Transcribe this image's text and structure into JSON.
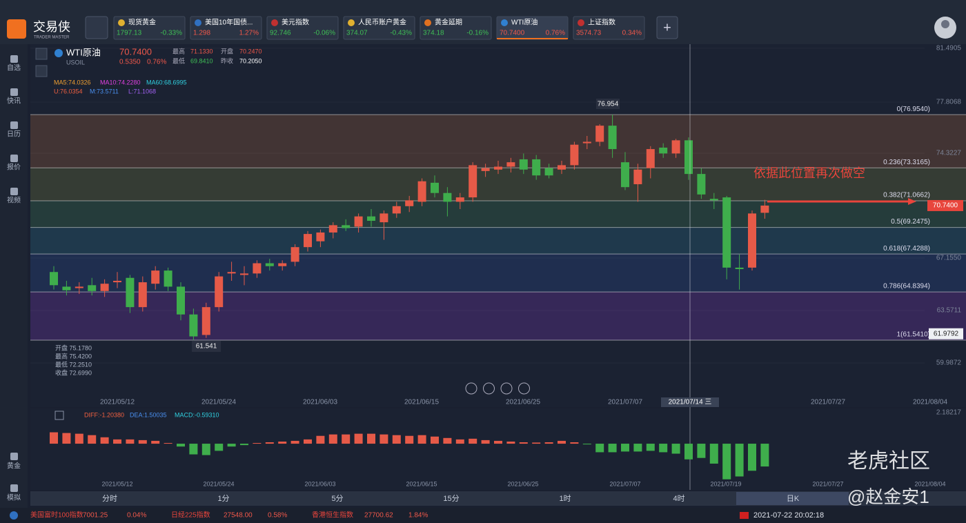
{
  "app": {
    "logo": "交易侠",
    "logo_sub": "TRADER MASTER"
  },
  "tabs": [
    {
      "name": "现货黄金",
      "price": "1797.13",
      "change": "-0.33%"
    },
    {
      "name": "美国10年国债...",
      "price": "1.298",
      "change": "1.27%"
    },
    {
      "name": "美元指数",
      "price": "92.746",
      "change": "-0.06%"
    },
    {
      "name": "人民币账户黄金",
      "price": "374.07",
      "change": "-0.43%"
    },
    {
      "name": "黄金延期",
      "price": "374.18",
      "change": "-0.16%"
    },
    {
      "name": "WTI原油",
      "price": "70.7400",
      "change": "0.76%"
    },
    {
      "name": "上证指数",
      "price": "3574.73",
      "change": "0.34%"
    }
  ],
  "selected_tab": 5,
  "sidebar": [
    "自选",
    "快讯",
    "日历",
    "报价",
    "视频"
  ],
  "sidebar_bottom": [
    "黄金",
    "模拟"
  ],
  "quote": {
    "name": "WTI原油",
    "code": "USOIL",
    "price": "70.7400",
    "change": "0.5350",
    "change_pct": "0.76%",
    "high_label": "最高",
    "high": "71.1330",
    "open_label": "开盘",
    "open": "70.2470",
    "low_label": "最低",
    "low": "69.8410",
    "prev_label": "昨收",
    "prev": "70.2050"
  },
  "indicators": [
    {
      "text": "MA5:74.0326",
      "color": "#f0a030"
    },
    {
      "text": "MA10:74.2280",
      "color": "#e040e0"
    },
    {
      "text": "MA60:68.6995",
      "color": "#30d0e0"
    },
    {
      "text": "U:76.0354",
      "color": "#f06040"
    },
    {
      "text": "M:73.5711",
      "color": "#4a90f0"
    },
    {
      "text": "L:71.1068",
      "color": "#a060f0"
    }
  ],
  "hover": [
    "开盘 75.1780",
    "最高 75.4200",
    "最低 72.2510",
    "收盘 72.6990"
  ],
  "chart": {
    "type": "candlestick",
    "ylim": [
      56.97,
      81.77
    ],
    "yticks": [
      81.4905,
      77.8068,
      74.3227,
      {
        "value": 67.155,
        "label": "67.1550"
      },
      63.5711,
      59.9872
    ],
    "up_color": "#e65a48",
    "down_color": "#3fae4c",
    "candles": [
      [
        66.2,
        66.6,
        65.0,
        65.3
      ],
      [
        65.2,
        65.6,
        64.6,
        64.95
      ],
      [
        65.1,
        65.5,
        64.7,
        65.2
      ],
      [
        65.3,
        65.8,
        64.6,
        64.9
      ],
      [
        64.9,
        65.7,
        64.5,
        65.4
      ],
      [
        65.5,
        66.2,
        65.1,
        65.6
      ],
      [
        65.8,
        66.0,
        63.4,
        63.8
      ],
      [
        63.8,
        65.9,
        63.5,
        65.5
      ],
      [
        65.4,
        66.6,
        65.0,
        66.3
      ],
      [
        66.3,
        66.5,
        64.9,
        65.2
      ],
      [
        65.2,
        65.5,
        62.9,
        63.3
      ],
      [
        63.3,
        63.7,
        61.541,
        61.8
      ],
      [
        61.9,
        64.1,
        61.7,
        63.8
      ],
      [
        63.8,
        66.2,
        63.5,
        65.9
      ],
      [
        66.1,
        66.9,
        65.6,
        66.2
      ],
      [
        66.0,
        66.6,
        65.3,
        66.1
      ],
      [
        66.1,
        67.0,
        65.8,
        66.8
      ],
      [
        66.8,
        67.1,
        66.3,
        66.6
      ],
      [
        66.6,
        67.0,
        66.3,
        66.8
      ],
      [
        66.9,
        68.1,
        66.6,
        67.9
      ],
      [
        67.9,
        69.0,
        67.6,
        68.8
      ],
      [
        68.3,
        69.1,
        67.9,
        68.9
      ],
      [
        68.9,
        69.6,
        68.5,
        69.4
      ],
      [
        69.4,
        69.8,
        69.0,
        69.2
      ],
      [
        69.3,
        70.2,
        68.9,
        70.0
      ],
      [
        70.0,
        70.5,
        69.3,
        69.7
      ],
      [
        69.6,
        70.4,
        68.4,
        70.2
      ],
      [
        70.2,
        71.0,
        69.9,
        70.7
      ],
      [
        70.7,
        71.4,
        70.3,
        71.1
      ],
      [
        71.0,
        72.6,
        70.7,
        72.4
      ],
      [
        72.3,
        72.8,
        71.3,
        71.6
      ],
      [
        71.6,
        72.0,
        70.0,
        71.0
      ],
      [
        71.0,
        71.6,
        70.5,
        71.3
      ],
      [
        71.3,
        73.7,
        71.0,
        73.5
      ],
      [
        73.1,
        73.6,
        72.7,
        73.3
      ],
      [
        73.2,
        73.8,
        72.9,
        73.4
      ],
      [
        73.4,
        74.0,
        73.0,
        73.7
      ],
      [
        73.9,
        74.3,
        72.9,
        73.2
      ],
      [
        73.9,
        74.2,
        72.5,
        72.8
      ],
      [
        73.3,
        73.6,
        72.6,
        72.8
      ],
      [
        73.2,
        73.8,
        72.9,
        73.5
      ],
      [
        73.5,
        75.1,
        73.2,
        74.9
      ],
      [
        75.0,
        75.5,
        74.6,
        75.1
      ],
      [
        75.1,
        76.3,
        74.8,
        76.2
      ],
      [
        76.2,
        76.954,
        74.0,
        74.6
      ],
      [
        73.7,
        74.4,
        71.8,
        72.0
      ],
      [
        72.2,
        73.6,
        71.0,
        73.2
      ],
      [
        73.3,
        74.8,
        72.6,
        74.6
      ],
      [
        74.7,
        75.0,
        74.0,
        74.3
      ],
      [
        74.3,
        75.3,
        74.0,
        75.2
      ],
      [
        75.2,
        75.4,
        72.5,
        72.9
      ],
      [
        72.9,
        73.3,
        71.2,
        71.5
      ],
      [
        71.2,
        71.6,
        70.5,
        71.1
      ],
      [
        71.3,
        71.4,
        65.7,
        66.5
      ],
      [
        66.5,
        67.4,
        65.0,
        66.4
      ],
      [
        66.5,
        70.4,
        66.3,
        70.2
      ],
      [
        70.247,
        71.133,
        69.841,
        70.74
      ]
    ],
    "fib": [
      {
        "value": 76.954,
        "label": "0(76.9540)"
      },
      {
        "value": 73.3165,
        "label": "0.236(73.3165)"
      },
      {
        "value": 71.0662,
        "label": "0.382(71.0662)"
      },
      {
        "value": 69.2475,
        "label": "0.5(69.2475)"
      },
      {
        "value": 67.4288,
        "label": "0.618(67.4288)"
      },
      {
        "value": 64.8394,
        "label": "0.786(64.8394)"
      },
      {
        "value": 61.541,
        "label": "1(61.5410)"
      }
    ],
    "dates": [
      "2021/05/12",
      "2021/05/24",
      "2021/06/03",
      "2021/06/15",
      "2021/06/25",
      "2021/07/07",
      "2021/07/27",
      "2021/08/04"
    ],
    "crosshair_date": "2021/07/14 三",
    "high_note": "76.954",
    "low_note": "61.541",
    "note": "依据此位置再次做空",
    "price_tag": {
      "value": 70.74,
      "label": "70.7400"
    },
    "low_tag": {
      "value": 61.9792,
      "label": "61.9792"
    }
  },
  "macd": {
    "legend": [
      {
        "text": "DIFF:-1.20380",
        "color": "#f06040"
      },
      {
        "text": "DEA:1.50035",
        "color": "#4a90f0"
      },
      {
        "text": "MACD:-0.59310",
        "color": "#30d0e0"
      }
    ],
    "ylim": [
      -3.0,
      2.18217
    ],
    "yticks": [
      2.18217
    ],
    "histogram": [
      0.8,
      0.75,
      0.7,
      0.6,
      0.45,
      0.3,
      0.3,
      0.25,
      0.2,
      0.05,
      -0.2,
      -0.75,
      -0.8,
      -0.5,
      -0.2,
      -0.1,
      0.05,
      0.1,
      0.15,
      0.2,
      0.3,
      0.55,
      0.65,
      0.65,
      0.7,
      0.7,
      0.65,
      0.6,
      0.55,
      0.6,
      0.5,
      0.4,
      0.3,
      0.35,
      0.25,
      0.2,
      0.15,
      0.1,
      0.08,
      0.1,
      0.2,
      0.1,
      -0.05,
      -0.6,
      -0.6,
      -0.55,
      -0.55,
      -0.5,
      -0.6,
      -0.7,
      -1.1,
      -1.0,
      -1.4,
      -2.5,
      -2.3,
      -1.9,
      -1.6
    ],
    "dates": [
      "2021/05/12",
      "2021/05/24",
      "2021/06/03",
      "2021/06/15",
      "2021/06/25",
      "2021/07/07",
      "2021/07/19",
      "2021/07/27",
      "2021/08/04"
    ]
  },
  "timeframes": [
    "分时",
    "1分",
    "5分",
    "15分",
    "1时",
    "4时",
    "日K"
  ],
  "selected_timeframe": 6,
  "ticker": [
    {
      "name": "美国富时100指数",
      "price": "7001.25",
      "change": "0.04%"
    },
    {
      "name": "日经225指数",
      "price": "27548.00",
      "change": "0.58%"
    },
    {
      "name": "香港恒生指数",
      "price": "27700.62",
      "change": "1.84%"
    }
  ],
  "clock": "2021-07-22 20:02:18",
  "watermark": [
    "老虎社区",
    "@赵金安1"
  ]
}
